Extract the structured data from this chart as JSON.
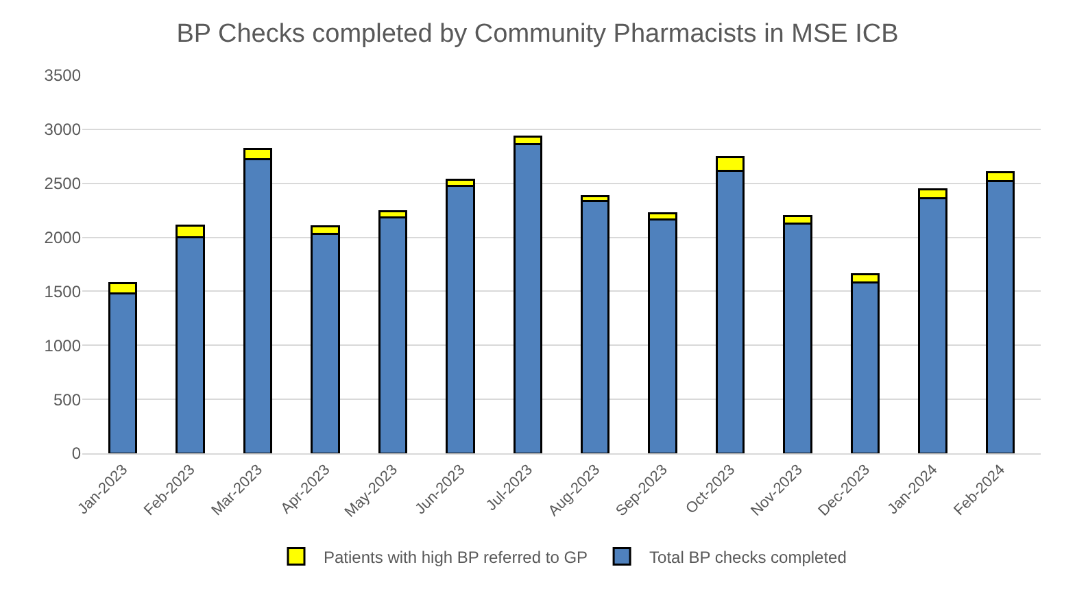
{
  "chart_data": {
    "type": "bar",
    "title": "BP Checks completed by Community Pharmacists in MSE ICB",
    "stacked": true,
    "categories": [
      "Jan-2023",
      "Feb-2023",
      "Mar-2023",
      "Apr-2023",
      "May-2023",
      "Jun-2023",
      "Jul-2023",
      "Aug-2023",
      "Sep-2023",
      "Oct-2023",
      "Nov-2023",
      "Dec-2023",
      "Jan-2024",
      "Feb-2024"
    ],
    "series": [
      {
        "name": "Total BP checks completed",
        "color": "#4f81bd",
        "values": [
          1480,
          2000,
          2725,
          2035,
          2185,
          2475,
          2860,
          2335,
          2165,
          2615,
          2130,
          1585,
          2360,
          2520
        ]
      },
      {
        "name": "Patients with high BP referred to GP",
        "color": "#ffff00",
        "values": [
          95,
          110,
          95,
          65,
          55,
          60,
          75,
          45,
          60,
          125,
          70,
          70,
          85,
          80
        ]
      }
    ],
    "ylim": [
      0,
      3500
    ],
    "yticks": [
      0,
      500,
      1000,
      1500,
      2000,
      2500,
      3000,
      3500
    ],
    "grid": "y",
    "legend": "bottom"
  }
}
